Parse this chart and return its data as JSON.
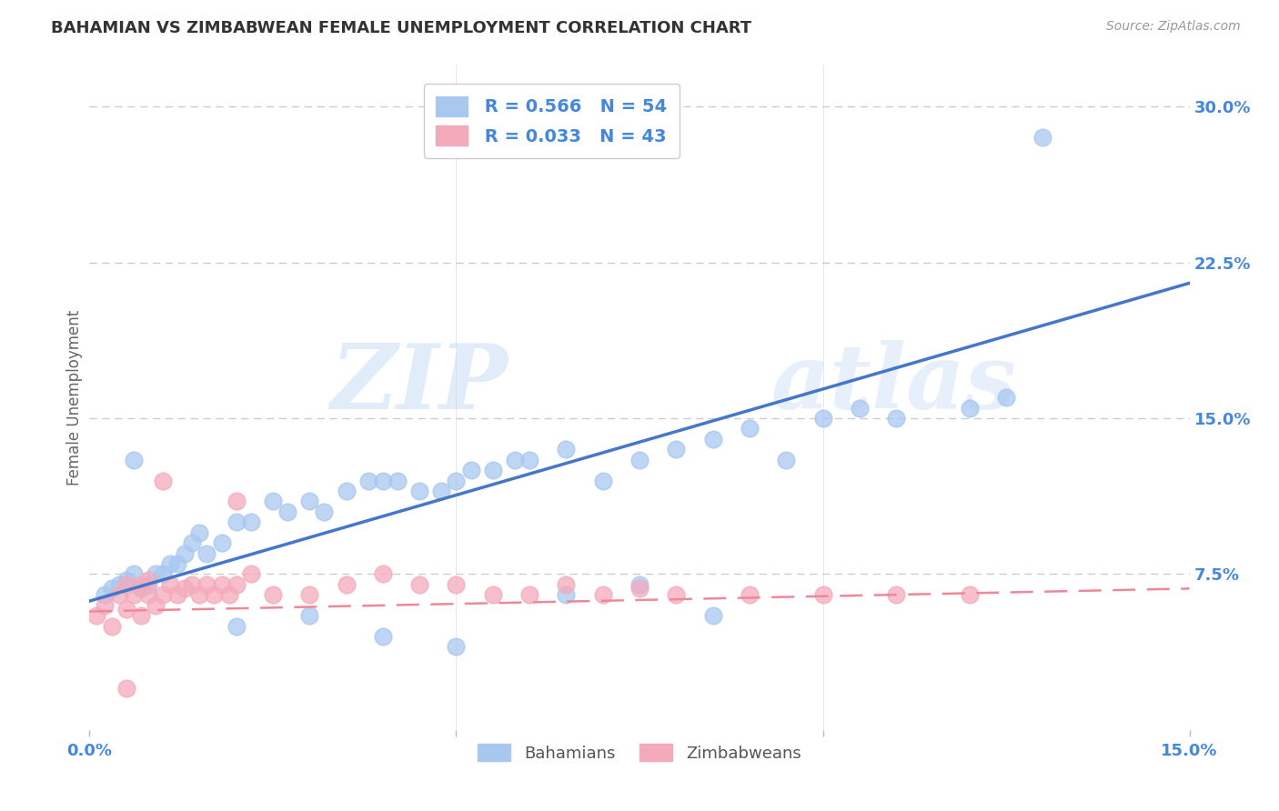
{
  "title": "BAHAMIAN VS ZIMBABWEAN FEMALE UNEMPLOYMENT CORRELATION CHART",
  "source": "Source: ZipAtlas.com",
  "ylabel": "Female Unemployment",
  "watermark_zip": "ZIP",
  "watermark_atlas": "atlas",
  "xlim": [
    0.0,
    0.15
  ],
  "ylim": [
    0.0,
    0.32
  ],
  "yticks": [
    0.075,
    0.15,
    0.225,
    0.3
  ],
  "ytick_labels": [
    "7.5%",
    "15.0%",
    "22.5%",
    "30.0%"
  ],
  "legend_r1": "R = 0.566",
  "legend_n1": "N = 54",
  "legend_r2": "R = 0.033",
  "legend_n2": "N = 43",
  "blue_color": "#A8C8F0",
  "pink_color": "#F5AABB",
  "blue_line_color": "#4477CC",
  "pink_line_color": "#EE8899",
  "legend_text_color": "#4488DD",
  "title_color": "#333333",
  "source_color": "#999999",
  "ylabel_color": "#666666",
  "grid_color": "#CCCCCC",
  "tick_label_color": "#4488DD",
  "bah_x": [
    0.002,
    0.003,
    0.004,
    0.005,
    0.006,
    0.007,
    0.008,
    0.009,
    0.01,
    0.011,
    0.012,
    0.013,
    0.014,
    0.015,
    0.016,
    0.018,
    0.02,
    0.022,
    0.025,
    0.027,
    0.03,
    0.032,
    0.035,
    0.038,
    0.04,
    0.042,
    0.045,
    0.048,
    0.05,
    0.052,
    0.055,
    0.058,
    0.06,
    0.065,
    0.07,
    0.075,
    0.08,
    0.085,
    0.09,
    0.095,
    0.1,
    0.105,
    0.11,
    0.12,
    0.125,
    0.065,
    0.075,
    0.085,
    0.02,
    0.03,
    0.04,
    0.05,
    0.006,
    0.13
  ],
  "bah_y": [
    0.065,
    0.068,
    0.07,
    0.072,
    0.075,
    0.068,
    0.07,
    0.075,
    0.075,
    0.08,
    0.08,
    0.085,
    0.09,
    0.095,
    0.085,
    0.09,
    0.1,
    0.1,
    0.11,
    0.105,
    0.11,
    0.105,
    0.115,
    0.12,
    0.12,
    0.12,
    0.115,
    0.115,
    0.12,
    0.125,
    0.125,
    0.13,
    0.13,
    0.135,
    0.12,
    0.13,
    0.135,
    0.14,
    0.145,
    0.13,
    0.15,
    0.155,
    0.15,
    0.155,
    0.16,
    0.065,
    0.07,
    0.055,
    0.05,
    0.055,
    0.045,
    0.04,
    0.13,
    0.285
  ],
  "zim_x": [
    0.001,
    0.002,
    0.003,
    0.004,
    0.005,
    0.005,
    0.006,
    0.007,
    0.007,
    0.008,
    0.008,
    0.009,
    0.01,
    0.011,
    0.012,
    0.013,
    0.014,
    0.015,
    0.016,
    0.017,
    0.018,
    0.019,
    0.02,
    0.022,
    0.025,
    0.03,
    0.035,
    0.04,
    0.045,
    0.05,
    0.055,
    0.06,
    0.065,
    0.07,
    0.075,
    0.08,
    0.09,
    0.1,
    0.11,
    0.12,
    0.01,
    0.02,
    0.005
  ],
  "zim_y": [
    0.055,
    0.06,
    0.05,
    0.065,
    0.07,
    0.058,
    0.065,
    0.055,
    0.07,
    0.065,
    0.072,
    0.06,
    0.065,
    0.07,
    0.065,
    0.068,
    0.07,
    0.065,
    0.07,
    0.065,
    0.07,
    0.065,
    0.07,
    0.075,
    0.065,
    0.065,
    0.07,
    0.075,
    0.07,
    0.07,
    0.065,
    0.065,
    0.07,
    0.065,
    0.068,
    0.065,
    0.065,
    0.065,
    0.065,
    0.065,
    0.12,
    0.11,
    0.02
  ],
  "bah_line_x0": 0.0,
  "bah_line_x1": 0.15,
  "bah_line_y0": 0.062,
  "bah_line_y1": 0.215,
  "zim_line_x0": 0.0,
  "zim_line_x1": 0.15,
  "zim_line_y0": 0.057,
  "zim_line_y1": 0.068
}
